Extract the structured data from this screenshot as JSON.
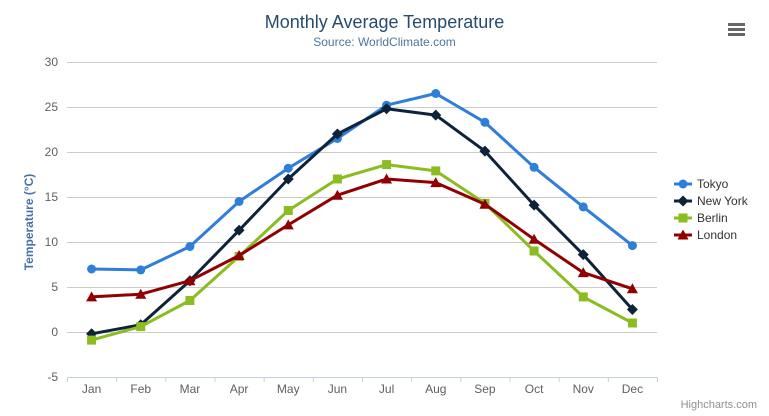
{
  "chart_data": {
    "type": "line",
    "title": "Monthly Average Temperature",
    "subtitle": "Source: WorldClimate.com",
    "xlabel": "",
    "ylabel": "Temperature (°C)",
    "categories": [
      "Jan",
      "Feb",
      "Mar",
      "Apr",
      "May",
      "Jun",
      "Jul",
      "Aug",
      "Sep",
      "Oct",
      "Nov",
      "Dec"
    ],
    "ylim": [
      -5,
      30
    ],
    "ytick_interval": 5,
    "grid": "horizontal-only",
    "legend_position": "right",
    "series": [
      {
        "name": "Tokyo",
        "color": "#2f7ed8",
        "marker": "circle",
        "values": [
          7.0,
          6.9,
          9.5,
          14.5,
          18.2,
          21.5,
          25.2,
          26.5,
          23.3,
          18.3,
          13.9,
          9.6
        ]
      },
      {
        "name": "New York",
        "color": "#0d233a",
        "marker": "diamond",
        "values": [
          -0.2,
          0.8,
          5.7,
          11.3,
          17.0,
          22.0,
          24.8,
          24.1,
          20.1,
          14.1,
          8.6,
          2.5
        ]
      },
      {
        "name": "Berlin",
        "color": "#8bbc21",
        "marker": "square",
        "values": [
          -0.9,
          0.6,
          3.5,
          8.4,
          13.5,
          17.0,
          18.6,
          17.9,
          14.3,
          9.0,
          3.9,
          1.0
        ]
      },
      {
        "name": "London",
        "color": "#910000",
        "marker": "triangle",
        "values": [
          3.9,
          4.2,
          5.7,
          8.5,
          11.9,
          15.2,
          17.0,
          16.6,
          14.2,
          10.3,
          6.6,
          4.8
        ]
      }
    ]
  },
  "icons": {
    "export_menu": "hamburger-menu-icon"
  },
  "credits": {
    "label": "Highcharts.com"
  },
  "colors": {
    "title": "#274b6d",
    "subtitle": "#4d759e",
    "axis_label": "#606060",
    "y_axis_title": "#4572a7",
    "gridline": "#cccccc",
    "x_axis_line": "#c0d0e0",
    "legend_text": "#333333",
    "credits": "#909090",
    "export_icon": "#666666",
    "background": "#ffffff"
  }
}
